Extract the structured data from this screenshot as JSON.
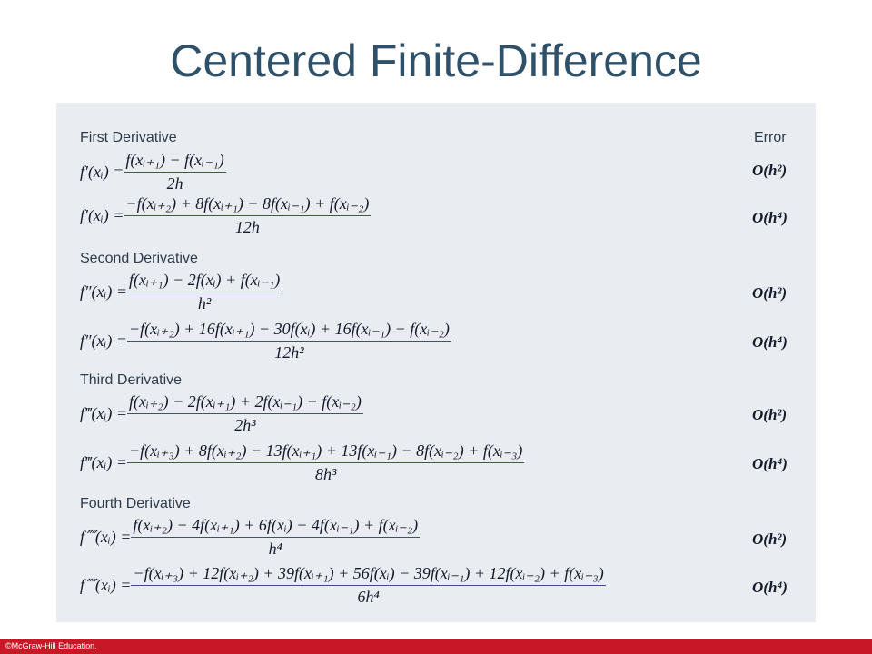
{
  "title": "Centered Finite-Difference",
  "error_header": "Error",
  "sections": [
    {
      "heading": "First Derivative",
      "rows": [
        {
          "lhs": "f′(xᵢ) =",
          "numerator": "f(xᵢ₊₁) − f(xᵢ₋₁)",
          "denominator": "2h",
          "error": "O(h²)"
        },
        {
          "lhs": "f′(xᵢ) =",
          "numerator": "−f(xᵢ₊₂) + 8f(xᵢ₊₁) − 8f(xᵢ₋₁) + f(xᵢ₋₂)",
          "denominator": "12h",
          "error": "O(h⁴)"
        }
      ]
    },
    {
      "heading": "Second Derivative",
      "rows": [
        {
          "lhs": "f″(xᵢ) =",
          "numerator": "f(xᵢ₊₁) − 2f(xᵢ) + f(xᵢ₋₁)",
          "denominator": "h²",
          "error": "O(h²)"
        },
        {
          "lhs": "f″(xᵢ) =",
          "numerator": "−f(xᵢ₊₂) + 16f(xᵢ₊₁) − 30f(xᵢ) + 16f(xᵢ₋₁) − f(xᵢ₋₂)",
          "denominator": "12h²",
          "error": "O(h⁴)"
        }
      ]
    },
    {
      "heading": "Third Derivative",
      "rows": [
        {
          "lhs": "f‴(xᵢ) =",
          "numerator": "f(xᵢ₊₂) − 2f(xᵢ₊₁) + 2f(xᵢ₋₁) − f(xᵢ₋₂)",
          "denominator": "2h³",
          "error": "O(h²)"
        },
        {
          "lhs": "f‴(xᵢ) =",
          "numerator": "−f(xᵢ₊₃) + 8f(xᵢ₊₂) − 13f(xᵢ₊₁) + 13f(xᵢ₋₁) − 8f(xᵢ₋₂) + f(xᵢ₋₃)",
          "denominator": "8h³",
          "error": "O(h⁴)"
        }
      ]
    },
    {
      "heading": "Fourth Derivative",
      "rows": [
        {
          "lhs": "f⁗(xᵢ) =",
          "numerator": "f(xᵢ₊₂) − 4f(xᵢ₊₁) + 6f(xᵢ) − 4f(xᵢ₋₁) + f(xᵢ₋₂)",
          "denominator": "h⁴",
          "error": "O(h²)"
        },
        {
          "lhs": "f⁗(xᵢ) =",
          "numerator": "−f(xᵢ₊₃) + 12f(xᵢ₊₂) + 39f(xᵢ₊₁) + 56f(xᵢ) − 39f(xᵢ₋₁) + 12f(xᵢ₋₂) + f(xᵢ₋₃)",
          "denominator": "6h⁴",
          "error": "O(h⁴)"
        }
      ]
    }
  ],
  "footer": "©McGraw-Hill Education."
}
